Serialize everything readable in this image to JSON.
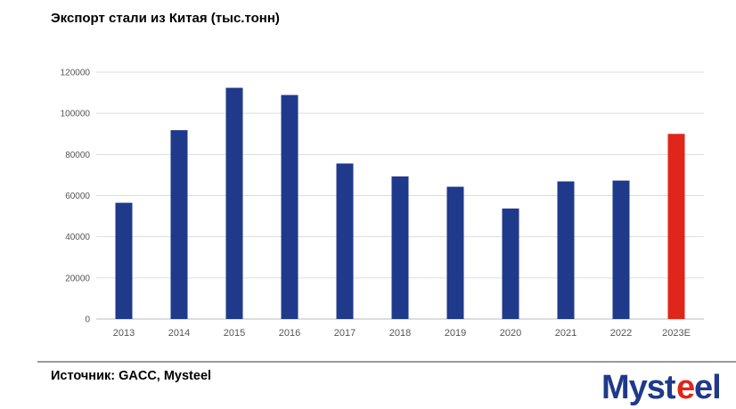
{
  "title": "Экспорт стали из Китая (тыс.тонн)",
  "source": "Источник: GACC, Mysteel",
  "logo": {
    "text": "Mysteel"
  },
  "colors": {
    "bar": "#1f3a8a",
    "highlight": "#e0261b",
    "grid": "#dddddd",
    "axis": "#bbbbbb"
  },
  "chart_data": {
    "type": "bar",
    "categories": [
      "2013",
      "2014",
      "2015",
      "2016",
      "2017",
      "2018",
      "2019",
      "2020",
      "2021",
      "2022",
      "2023E"
    ],
    "values": [
      56500,
      91800,
      112400,
      108900,
      75600,
      69300,
      64300,
      53700,
      66900,
      67300,
      90000
    ],
    "highlight_index": 10,
    "ylim": [
      0,
      120000
    ],
    "yticks": [
      0,
      20000,
      40000,
      60000,
      80000,
      100000,
      120000
    ],
    "grid": true,
    "xlabel": "",
    "ylabel": ""
  }
}
